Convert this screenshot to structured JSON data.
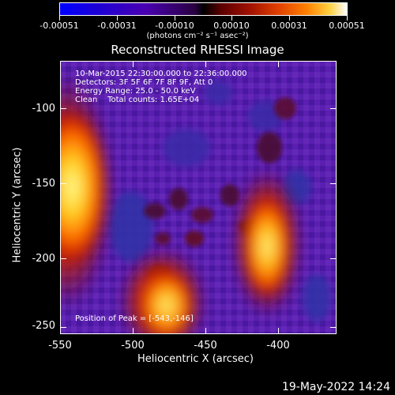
{
  "colorbar": {
    "ticks": [
      "-0.00051",
      "-0.00031",
      "-0.00010",
      "0.00010",
      "0.00031",
      "0.00051"
    ],
    "units": "(photons cm⁻² s⁻¹ asec⁻²)"
  },
  "title": "Reconstructed RHESSI Image",
  "overlay": {
    "line1": "10-Mar-2015 22:30:00.000 to 22:36:00.000",
    "line2": "Detectors: 3F 5F 6F 7F 8F 9F, Att 0",
    "line3": "Energy Range: 25.0 - 50.0 keV",
    "line4": "Clean    Total counts: 1.65E+04",
    "peak": "Position of Peak = [-543,-146]"
  },
  "axes": {
    "xlabel": "Heliocentric X (arcsec)",
    "ylabel": "Heliocentric Y (arcsec)",
    "xticks": [
      "-550",
      "-500",
      "-450",
      "-400"
    ],
    "yticks": [
      "-100",
      "-150",
      "-200",
      "-250"
    ],
    "xlim": [
      -550,
      -368
    ],
    "ylim": [
      -258,
      -77
    ]
  },
  "footer": "19-May-2022 14:24",
  "colors": {
    "background": "#000000",
    "field": "#5a1fb0",
    "hot": "#ffffa0"
  }
}
